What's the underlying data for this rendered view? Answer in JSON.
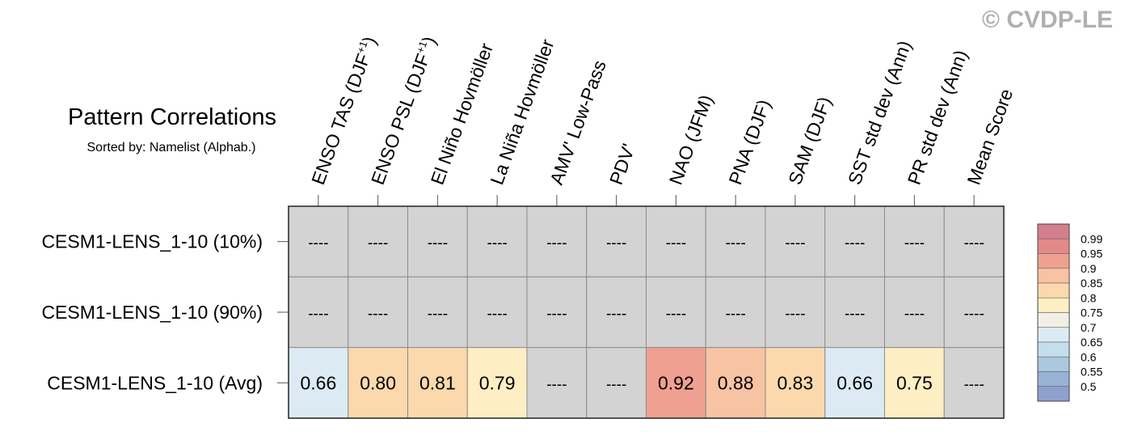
{
  "watermark": "© CVDP-LE",
  "title": "Pattern Correlations",
  "subtitle": "Sorted by: Namelist (Alphab.)",
  "missing_symbol": "----",
  "chart_data": {
    "type": "heatmap",
    "columns": [
      {
        "label": "ENSO TAS (DJF",
        "sup": "+1",
        "tail": ")"
      },
      {
        "label": "ENSO PSL (DJF",
        "sup": "+1",
        "tail": ")"
      },
      {
        "label": "El Niño Hovmöller",
        "sup": "",
        "tail": ""
      },
      {
        "label": "La Niña Hovmöller",
        "sup": "",
        "tail": ""
      },
      {
        "label": "AMV' Low-Pass",
        "sup": "",
        "tail": ""
      },
      {
        "label": "PDV'",
        "sup": "",
        "tail": ""
      },
      {
        "label": "NAO (JFM)",
        "sup": "",
        "tail": ""
      },
      {
        "label": "PNA (DJF)",
        "sup": "",
        "tail": ""
      },
      {
        "label": "SAM (DJF)",
        "sup": "",
        "tail": ""
      },
      {
        "label": "SST std dev (Ann)",
        "sup": "",
        "tail": ""
      },
      {
        "label": "PR std dev (Ann)",
        "sup": "",
        "tail": ""
      },
      {
        "label": "Mean Score",
        "sup": "",
        "tail": ""
      }
    ],
    "rows": [
      {
        "label": "CESM1-LENS_1-10 (10%)",
        "values": [
          null,
          null,
          null,
          null,
          null,
          null,
          null,
          null,
          null,
          null,
          null,
          null
        ]
      },
      {
        "label": "CESM1-LENS_1-10 (90%)",
        "values": [
          null,
          null,
          null,
          null,
          null,
          null,
          null,
          null,
          null,
          null,
          null,
          null
        ]
      },
      {
        "label": "CESM1-LENS_1-10 (Avg)",
        "values": [
          "0.66",
          "0.80",
          "0.81",
          "0.79",
          null,
          null,
          "0.92",
          "0.88",
          "0.83",
          "0.66",
          "0.75",
          null
        ]
      }
    ],
    "colorbar": {
      "labels": [
        "0.99",
        "0.95",
        "0.9",
        "0.85",
        "0.8",
        "0.75",
        "0.7",
        "0.65",
        "0.6",
        "0.55",
        "0.5"
      ],
      "colors": [
        "#d47f8e",
        "#e38a88",
        "#f0a090",
        "#f8c3a2",
        "#fbd9ac",
        "#fdeec4",
        "#f2f0e4",
        "#dcebf3",
        "#c4dfec",
        "#abc8e0",
        "#98b2d6",
        "#8ea0cc"
      ]
    },
    "missing_color": "#d3d3d3"
  }
}
